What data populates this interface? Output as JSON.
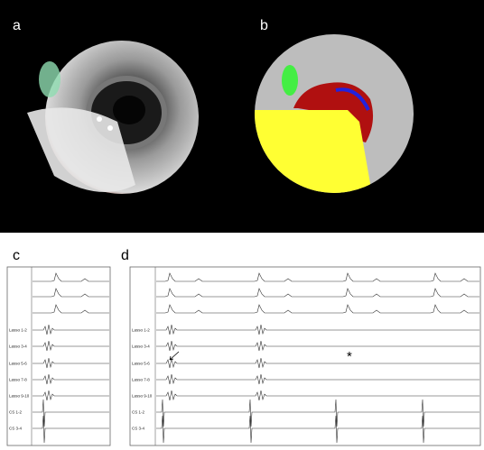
{
  "panel_labels": [
    "a",
    "b",
    "c",
    "d"
  ],
  "channels": [
    "Lasso 1-2",
    "Lasso 3-4",
    "Lasso 5-6",
    "Lasso 7-8",
    "Lasso 9-10",
    "CS 1-2",
    "CS 3-4"
  ],
  "annotation": "*"
}
